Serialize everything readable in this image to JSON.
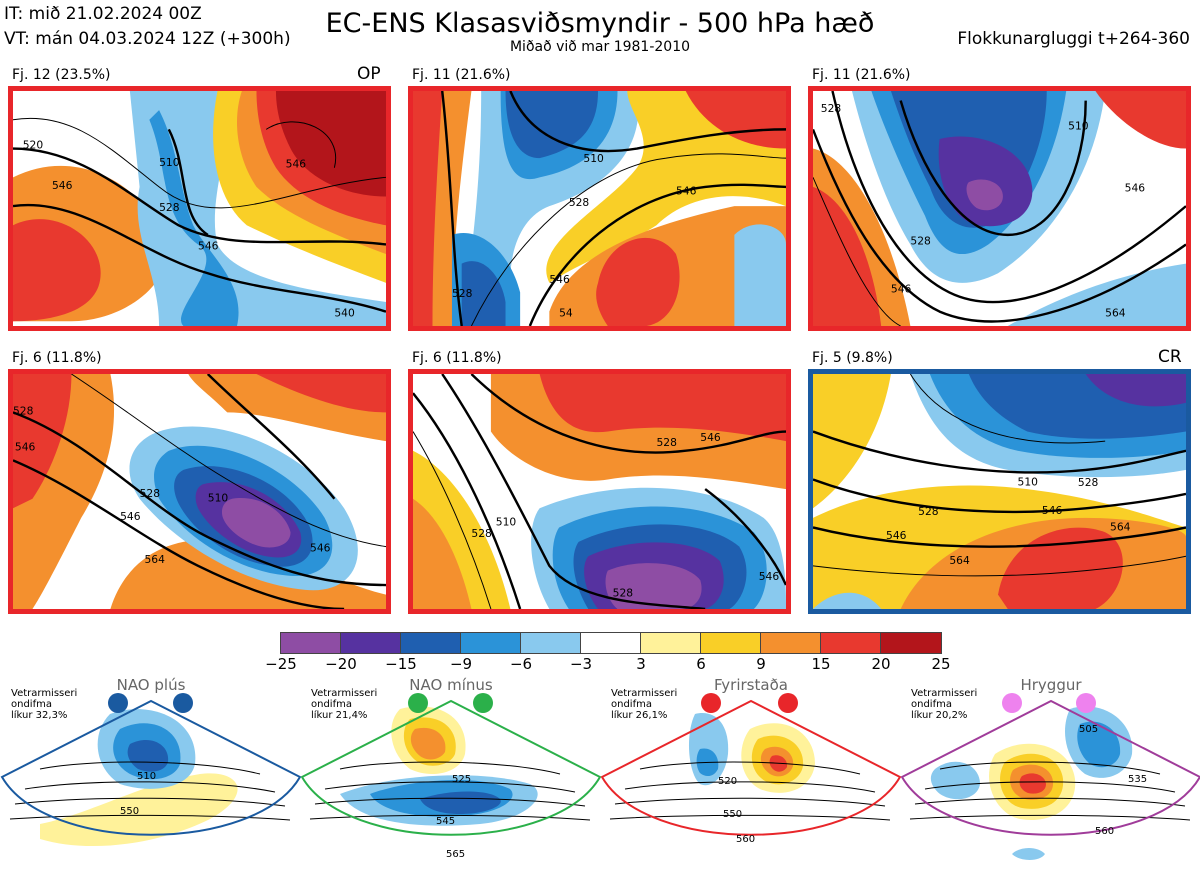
{
  "header": {
    "it": "IT: mið 21.02.2024 00Z",
    "vt": "VT: mán 04.03.2024 12Z  (+300h)",
    "title": "EC-ENS Klasasviðsmyndir - 500 hPa hæð",
    "subtitle": "Miðað við mar 1981-2010",
    "window": "Flokkunargluggi t+264-360"
  },
  "panels": [
    {
      "caption": "Fj. 12 (23.5%)",
      "tag": "OP",
      "contours": [
        "520",
        "546",
        "510",
        "528",
        "546",
        "546",
        "540"
      ]
    },
    {
      "caption": "Fj. 11 (21.6%)",
      "tag": "",
      "contours": [
        "510",
        "528",
        "546",
        "546",
        "528",
        "54"
      ]
    },
    {
      "caption": "Fj. 11 (21.6%)",
      "tag": "",
      "contours": [
        "528",
        "510",
        "528",
        "546",
        "546",
        "564"
      ]
    },
    {
      "caption": "Fj. 6 (11.8%)",
      "tag": "",
      "contours": [
        "528",
        "546",
        "528",
        "510",
        "546",
        "546",
        "564"
      ]
    },
    {
      "caption": "Fj. 6 (11.8%)",
      "tag": "",
      "contours": [
        "528",
        "546",
        "510",
        "528",
        "528",
        "546"
      ]
    },
    {
      "caption": "Fj. 5 (9.8%)",
      "tag": "CR",
      "contours": [
        "510",
        "528",
        "546",
        "528",
        "546",
        "564",
        "564"
      ]
    }
  ],
  "colorbar": {
    "ticks": [
      "−25",
      "−20",
      "−15",
      "−9",
      "−6",
      "−3",
      "3",
      "6",
      "9",
      "15",
      "20",
      "25"
    ],
    "colors": [
      "#8e4da4",
      "#5632a0",
      "#1f5fb0",
      "#2b93d8",
      "#89c9ee",
      "#ffffff",
      "#fff29a",
      "#f9cf27",
      "#f4902e",
      "#e8392f",
      "#b3151b"
    ]
  },
  "regimes": [
    {
      "name": "NAO plús",
      "info": [
        "Vetrarmisseri",
        "ondifma",
        "líkur 32,3%"
      ],
      "color": "#1a5aa0",
      "labels": [
        "510",
        "550"
      ]
    },
    {
      "name": "NAO mínus",
      "info": [
        "Vetrarmisseri",
        "ondifma",
        "líkur 21,4%"
      ],
      "color": "#2bb04a",
      "labels": [
        "525",
        "545",
        "565"
      ]
    },
    {
      "name": "Fyrirstaða",
      "info": [
        "Vetrarmisseri",
        "ondifma",
        "líkur 26,1%"
      ],
      "color": "#e8262a",
      "labels": [
        "520",
        "550",
        "560"
      ]
    },
    {
      "name": "Hryggur",
      "info": [
        "Vetrarmisseri",
        "ondifma",
        "líkur 20,2%"
      ],
      "color": "#a03c9a",
      "labels": [
        "505",
        "535",
        "560"
      ]
    }
  ]
}
